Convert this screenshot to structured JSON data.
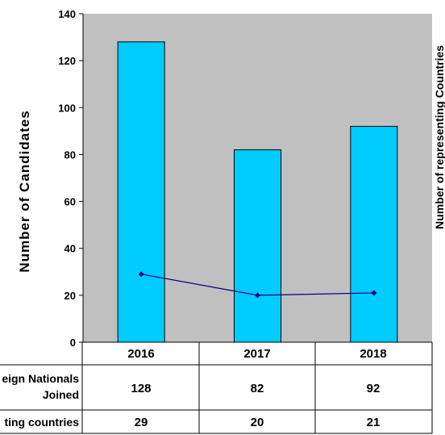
{
  "chart_data": {
    "type": "bar",
    "categories": [
      "2016",
      "2017",
      "2018"
    ],
    "ylabel": "Number of Candidates",
    "ylabel_right": "Number of representing Countries",
    "ylim": [
      0,
      140
    ],
    "yticks": [
      "0",
      "20",
      "40",
      "60",
      "80",
      "100",
      "120",
      "140"
    ],
    "series": [
      {
        "name": "eign Nationals Joined",
        "type": "bar",
        "values": [
          128,
          82,
          92
        ],
        "display_values": [
          "128",
          "82",
          "92"
        ]
      },
      {
        "name": "ting countries",
        "type": "line",
        "values": [
          29,
          20,
          21
        ],
        "display_values": [
          "29",
          "20",
          "21"
        ]
      }
    ],
    "row_labels": {
      "candidates_line1": "eign Nationals",
      "candidates_line2": "Joined",
      "countries": "ting countries"
    },
    "grid": false,
    "legend": "data table below chart",
    "colors": {
      "plot_background": "#c0c0c0",
      "bar_fill": "#00ccff",
      "bar_stroke": "#000000",
      "line": "#00007f"
    }
  }
}
